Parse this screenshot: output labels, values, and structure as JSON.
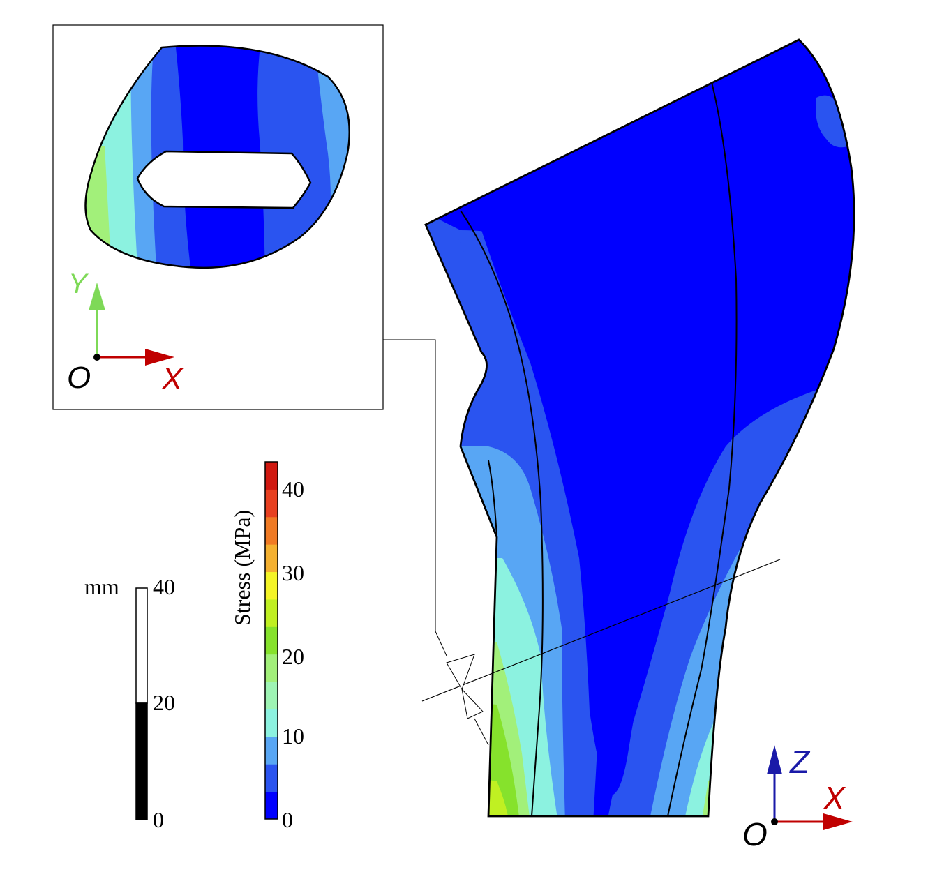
{
  "inset": {
    "axis_y": "Y",
    "axis_x": "X",
    "origin": "O"
  },
  "main_axes": {
    "axis_z": "Z",
    "axis_x": "X",
    "origin": "O"
  },
  "scale_bar": {
    "unit": "mm",
    "ticks": [
      "0",
      "20",
      "40"
    ]
  },
  "colorbar": {
    "label": "Stress (MPa)",
    "ticks": [
      "0",
      "10",
      "20",
      "30",
      "40"
    ],
    "levels": [
      "#0000ff",
      "#2a54f0",
      "#58a6f4",
      "#8cf2e0",
      "#9ef4b4",
      "#a2f07a",
      "#86e22c",
      "#c0f022",
      "#f4f426",
      "#f4b030",
      "#f07a24",
      "#e84020",
      "#d01810"
    ],
    "colors": {
      "blue": "#0000ff",
      "mid_blue": "#2a54f0",
      "light_blue": "#58a6f4",
      "cyan": "#8cf2e0",
      "green": "#86e22c",
      "yellow": "#f4f426",
      "red": "#d01810"
    }
  },
  "axis_colors": {
    "x": "#c00000",
    "y": "#7ed957",
    "z": "#1a1aa8"
  }
}
